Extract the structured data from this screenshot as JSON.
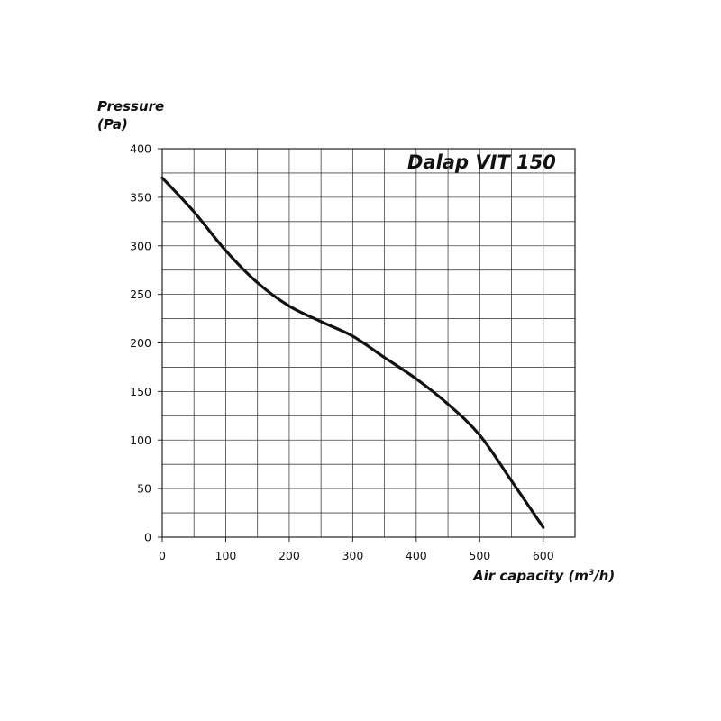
{
  "chart_data": {
    "type": "line",
    "title": "Dalap VIT 150",
    "ylabel_line1": "Pressure",
    "ylabel_line2": "(Pa)",
    "xlabel_prefix": "Air capacity (m",
    "xlabel_sup": "3",
    "xlabel_suffix": "/h)",
    "xlim": [
      0,
      650
    ],
    "ylim": [
      0,
      400
    ],
    "xticks": [
      0,
      100,
      200,
      300,
      400,
      500,
      600
    ],
    "yticks": [
      0,
      50,
      100,
      150,
      200,
      250,
      300,
      350,
      400
    ],
    "x_grid_step": 50,
    "y_grid_step": 25,
    "grid": true,
    "legend": "none",
    "line_color": "#111111",
    "series": [
      {
        "x": [
          0,
          50,
          100,
          150,
          200,
          250,
          300,
          350,
          400,
          450,
          500,
          550,
          600
        ],
        "values": [
          370,
          335,
          295,
          262,
          238,
          222,
          207,
          185,
          163,
          137,
          105,
          58,
          10
        ]
      }
    ]
  }
}
